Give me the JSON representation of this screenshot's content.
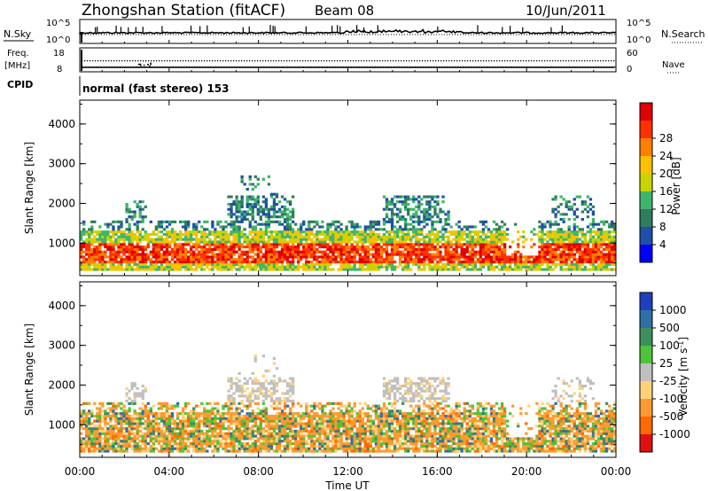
{
  "header": {
    "station": "Zhongshan Station (fitACF)",
    "beam": "Beam 08",
    "date": "10/Jun/2011"
  },
  "top_panels": {
    "nsky_label": "N.Sky",
    "nsearch_label": "N.Search",
    "scale_high": "10^5",
    "scale_low": "10^0",
    "freq_label_1": "Freq.",
    "freq_label_2": "[MHz]",
    "freq_ticks_left": [
      "18",
      "8"
    ],
    "nave_label": "Nave",
    "nave_ticks_right": [
      "60",
      "0"
    ],
    "cpid_label": "CPID",
    "cpid_value": "normal (fast stereo) 153"
  },
  "chart_data": [
    {
      "type": "heatmap",
      "name": "power",
      "ylabel": "Slant Range [km]",
      "xlabel": "Time UT",
      "yticks": [
        "1000",
        "2000",
        "3000",
        "4000"
      ],
      "ylim": [
        180,
        4600
      ],
      "colorbar_label": "Power [dB]",
      "colorbar_ticks": [
        "4",
        "8",
        "12",
        "16",
        "20",
        "24",
        "28"
      ],
      "colorbar_range": [
        0,
        30
      ],
      "colors": [
        "#0000ff",
        "#1f4fa8",
        "#2e7d5e",
        "#3fb56b",
        "#c8d400",
        "#ffc000",
        "#ff8000",
        "#ff3000",
        "#e00000"
      ]
    },
    {
      "type": "heatmap",
      "name": "velocity",
      "ylabel": "Slant Range [km]",
      "xlabel": "Time UT",
      "yticks": [
        "1000",
        "2000",
        "3000",
        "4000"
      ],
      "ylim": [
        180,
        4600
      ],
      "colorbar_label": "Velocity [m s^-1]",
      "colorbar_ticks": [
        "1000",
        "500",
        "100",
        "25",
        "-25",
        "-100",
        "-500",
        "-1000"
      ],
      "colors": [
        "#1f3fbf",
        "#2f6fa8",
        "#3d8f5a",
        "#4ec43a",
        "#c0c0c0",
        "#ffd27a",
        "#ff9a30",
        "#ff6a00",
        "#e01010"
      ]
    }
  ],
  "x_axis": {
    "ticks": [
      "00:00",
      "04:00",
      "08:00",
      "12:00",
      "16:00",
      "20:00",
      "00:00"
    ],
    "label": "Time UT"
  }
}
